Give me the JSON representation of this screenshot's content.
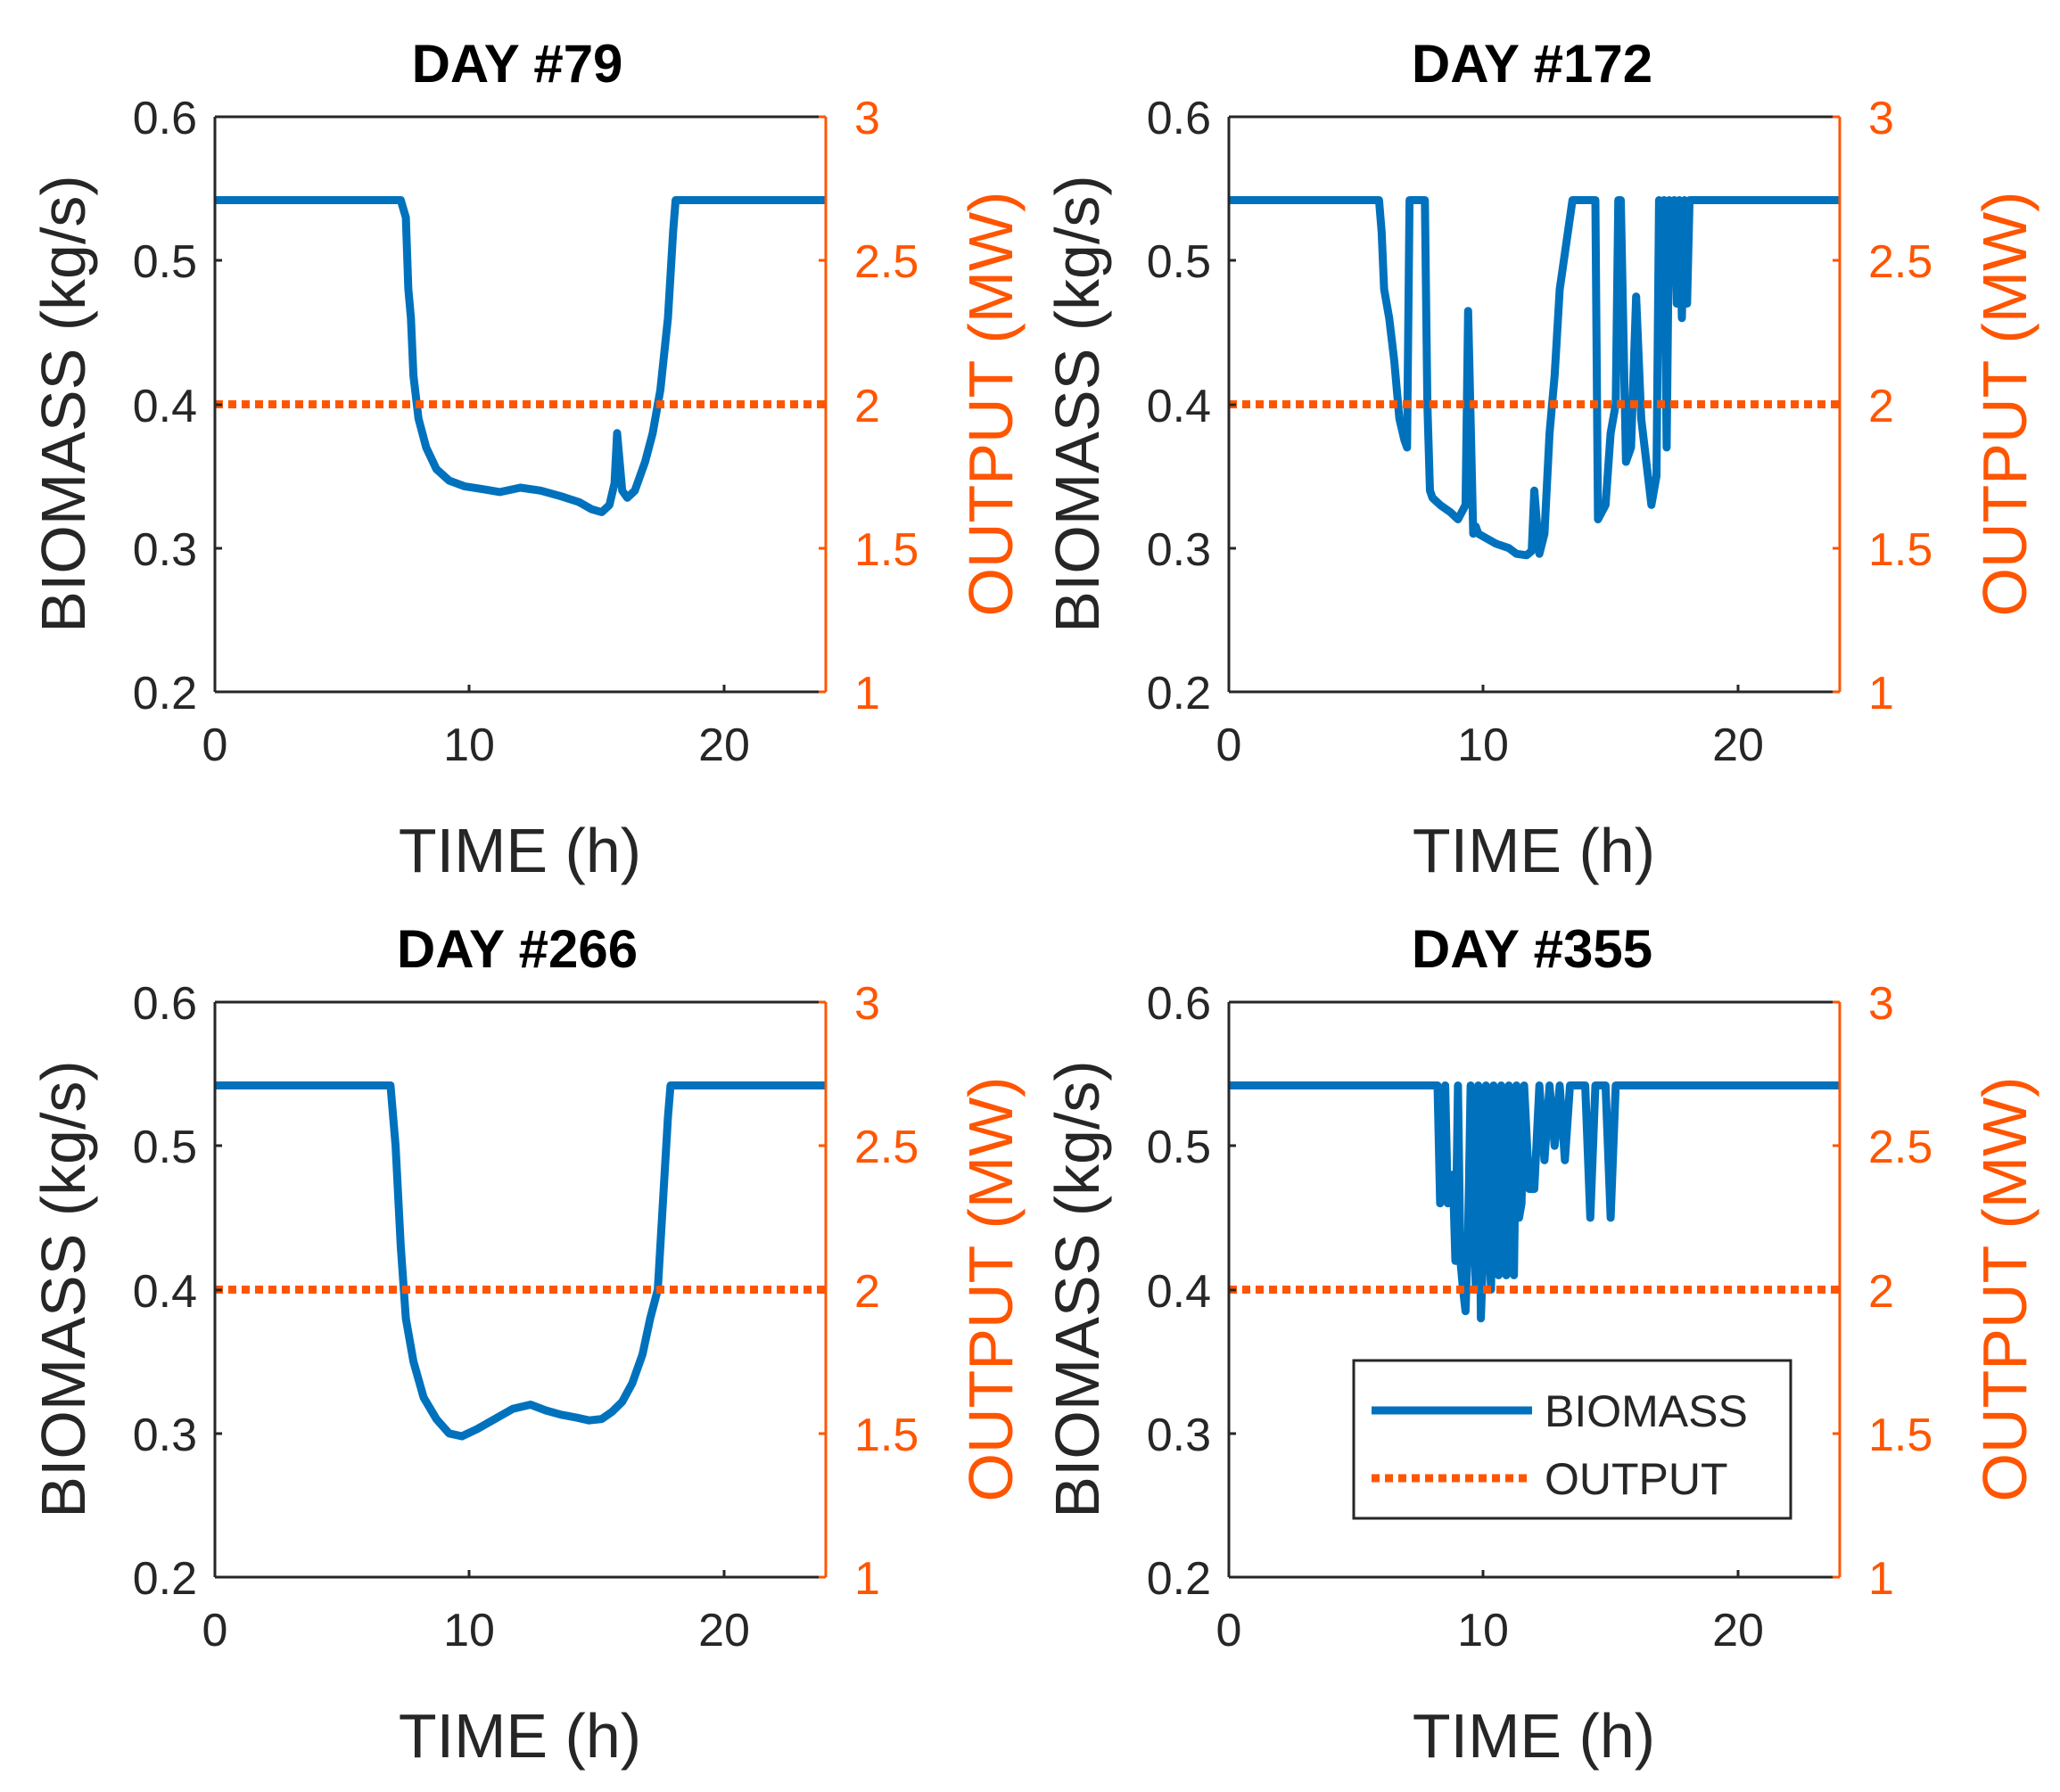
{
  "figure": {
    "colors": {
      "biomass": "#0072BD",
      "output": "#FF5500",
      "axis": "#262626",
      "frame": "#000000"
    },
    "legend": {
      "entries": [
        "BIOMASS",
        "OUTPUT"
      ],
      "placement": "lower-right of DAY #355 panel"
    }
  },
  "chart_data": [
    {
      "type": "line",
      "title": "DAY #79",
      "xlabel": "TIME (h)",
      "ylabel": "BIOMASS (kg/s)",
      "ylabel_right": "OUTPUT (MW)",
      "xlim": [
        0,
        24
      ],
      "ylim": [
        0.2,
        0.6
      ],
      "ylim_right": [
        1,
        3
      ],
      "xticks": [
        "0",
        "10",
        "20"
      ],
      "yticks": [
        "0.2",
        "0.3",
        "0.4",
        "0.5",
        "0.6"
      ],
      "yticks_right": [
        "1",
        "1.5",
        "2",
        "2.5",
        "3"
      ],
      "series": [
        {
          "name": "BIOMASS",
          "axis": "left",
          "style": "solid",
          "x": [
            0,
            7.3,
            7.5,
            7.6,
            7.7,
            7.8,
            8.0,
            8.3,
            8.7,
            9.2,
            9.8,
            10.5,
            11.2,
            12.0,
            12.8,
            13.6,
            14.3,
            14.8,
            15.2,
            15.5,
            15.7,
            15.8,
            16.0,
            16.2,
            16.5,
            16.9,
            17.2,
            17.5,
            17.8,
            18.0,
            18.1,
            24
          ],
          "values": [
            0.542,
            0.542,
            0.53,
            0.48,
            0.46,
            0.42,
            0.39,
            0.37,
            0.355,
            0.347,
            0.343,
            0.341,
            0.339,
            0.342,
            0.34,
            0.336,
            0.332,
            0.327,
            0.325,
            0.33,
            0.345,
            0.38,
            0.34,
            0.335,
            0.34,
            0.36,
            0.38,
            0.41,
            0.46,
            0.52,
            0.542,
            0.542
          ]
        },
        {
          "name": "OUTPUT",
          "axis": "right",
          "style": "dotted",
          "x": [
            0,
            24
          ],
          "values": [
            2,
            2
          ]
        }
      ]
    },
    {
      "type": "line",
      "title": "DAY #172",
      "xlabel": "TIME (h)",
      "ylabel": "BIOMASS (kg/s)",
      "ylabel_right": "OUTPUT (MW)",
      "xlim": [
        0,
        24
      ],
      "ylim": [
        0.2,
        0.6
      ],
      "ylim_right": [
        1,
        3
      ],
      "xticks": [
        "0",
        "10",
        "20"
      ],
      "yticks": [
        "0.2",
        "0.3",
        "0.4",
        "0.5",
        "0.6"
      ],
      "yticks_right": [
        "1",
        "1.5",
        "2",
        "2.5",
        "3"
      ],
      "series": [
        {
          "name": "BIOMASS",
          "axis": "left",
          "style": "solid",
          "x": [
            0,
            5.9,
            6.0,
            6.1,
            6.3,
            6.5,
            6.7,
            6.9,
            7.0,
            7.1,
            7.2,
            7.3,
            7.5,
            7.7,
            7.8,
            7.9,
            8.0,
            8.3,
            8.7,
            9.0,
            9.3,
            9.4,
            9.6,
            9.7,
            9.8,
            10.0,
            10.5,
            11.0,
            11.3,
            11.7,
            11.9,
            12.0,
            12.2,
            12.4,
            12.6,
            12.8,
            13.0,
            13.5,
            14.0,
            14.3,
            14.4,
            14.5,
            14.8,
            15.0,
            15.2,
            15.3,
            15.4,
            15.6,
            15.8,
            16.0,
            16.2,
            16.4,
            16.6,
            16.8,
            16.9,
            17.0,
            17.1,
            17.2,
            17.3,
            17.4,
            17.5,
            17.6,
            17.7,
            17.8,
            17.9,
            18.0,
            18.1,
            18.2,
            24
          ],
          "values": [
            0.542,
            0.542,
            0.52,
            0.48,
            0.46,
            0.43,
            0.39,
            0.375,
            0.37,
            0.542,
            0.542,
            0.542,
            0.542,
            0.542,
            0.4,
            0.34,
            0.335,
            0.33,
            0.325,
            0.32,
            0.33,
            0.465,
            0.31,
            0.315,
            0.31,
            0.308,
            0.303,
            0.3,
            0.296,
            0.295,
            0.298,
            0.34,
            0.296,
            0.31,
            0.38,
            0.42,
            0.48,
            0.542,
            0.542,
            0.542,
            0.542,
            0.32,
            0.33,
            0.38,
            0.4,
            0.542,
            0.542,
            0.36,
            0.37,
            0.475,
            0.39,
            0.36,
            0.33,
            0.35,
            0.542,
            0.48,
            0.542,
            0.37,
            0.542,
            0.49,
            0.542,
            0.47,
            0.542,
            0.46,
            0.542,
            0.47,
            0.542,
            0.542,
            0.542
          ]
        },
        {
          "name": "OUTPUT",
          "axis": "right",
          "style": "dotted",
          "x": [
            0,
            24
          ],
          "values": [
            2,
            2
          ]
        }
      ]
    },
    {
      "type": "line",
      "title": "DAY #266",
      "xlabel": "TIME (h)",
      "ylabel": "BIOMASS (kg/s)",
      "ylabel_right": "OUTPUT (MW)",
      "xlim": [
        0,
        24
      ],
      "ylim": [
        0.2,
        0.6
      ],
      "ylim_right": [
        1,
        3
      ],
      "xticks": [
        "0",
        "10",
        "20"
      ],
      "yticks": [
        "0.2",
        "0.3",
        "0.4",
        "0.5",
        "0.6"
      ],
      "yticks_right": [
        "1",
        "1.5",
        "2",
        "2.5",
        "3"
      ],
      "series": [
        {
          "name": "BIOMASS",
          "axis": "left",
          "style": "solid",
          "x": [
            0,
            6.9,
            7.1,
            7.3,
            7.5,
            7.8,
            8.2,
            8.7,
            9.2,
            9.7,
            10.3,
            11.0,
            11.7,
            12.4,
            13.0,
            13.6,
            14.2,
            14.7,
            15.2,
            15.6,
            16.0,
            16.4,
            16.8,
            17.1,
            17.4,
            17.6,
            17.8,
            17.9,
            24
          ],
          "values": [
            0.542,
            0.542,
            0.5,
            0.43,
            0.38,
            0.35,
            0.325,
            0.31,
            0.3,
            0.298,
            0.303,
            0.31,
            0.317,
            0.32,
            0.316,
            0.313,
            0.311,
            0.309,
            0.31,
            0.315,
            0.322,
            0.335,
            0.355,
            0.38,
            0.4,
            0.46,
            0.52,
            0.542,
            0.542
          ]
        },
        {
          "name": "OUTPUT",
          "axis": "right",
          "style": "dotted",
          "x": [
            0,
            24
          ],
          "values": [
            2,
            2
          ]
        }
      ]
    },
    {
      "type": "line",
      "title": "DAY #355",
      "xlabel": "TIME (h)",
      "ylabel": "BIOMASS (kg/s)",
      "ylabel_right": "OUTPUT (MW)",
      "xlim": [
        0,
        24
      ],
      "ylim": [
        0.2,
        0.6
      ],
      "ylim_right": [
        1,
        3
      ],
      "xticks": [
        "0",
        "10",
        "20"
      ],
      "yticks": [
        "0.2",
        "0.3",
        "0.4",
        "0.5",
        "0.6"
      ],
      "yticks_right": [
        "1",
        "1.5",
        "2",
        "2.5",
        "3"
      ],
      "series": [
        {
          "name": "BIOMASS",
          "axis": "left",
          "style": "solid",
          "x": [
            0,
            8.2,
            8.3,
            8.5,
            8.6,
            8.8,
            8.9,
            9.0,
            9.1,
            9.2,
            9.3,
            9.4,
            9.5,
            9.6,
            9.7,
            9.8,
            9.9,
            10.0,
            10.1,
            10.2,
            10.3,
            10.4,
            10.5,
            10.6,
            10.7,
            10.8,
            10.9,
            11.0,
            11.1,
            11.2,
            11.3,
            11.4,
            11.5,
            11.6,
            11.8,
            12.0,
            12.2,
            12.4,
            12.6,
            12.8,
            13.0,
            13.2,
            13.4,
            13.6,
            13.8,
            14.0,
            14.2,
            14.4,
            14.6,
            14.8,
            15.0,
            15.2,
            15.4,
            15.5,
            24
          ],
          "values": [
            0.542,
            0.542,
            0.46,
            0.542,
            0.46,
            0.48,
            0.42,
            0.542,
            0.42,
            0.4,
            0.385,
            0.44,
            0.542,
            0.46,
            0.4,
            0.542,
            0.38,
            0.43,
            0.542,
            0.45,
            0.4,
            0.542,
            0.43,
            0.41,
            0.542,
            0.42,
            0.41,
            0.542,
            0.44,
            0.41,
            0.542,
            0.45,
            0.46,
            0.542,
            0.47,
            0.47,
            0.542,
            0.49,
            0.542,
            0.5,
            0.542,
            0.49,
            0.542,
            0.542,
            0.542,
            0.542,
            0.45,
            0.542,
            0.542,
            0.542,
            0.45,
            0.542,
            0.542,
            0.542,
            0.542
          ]
        },
        {
          "name": "OUTPUT",
          "axis": "right",
          "style": "dotted",
          "x": [
            0,
            24
          ],
          "values": [
            2,
            2
          ]
        }
      ]
    }
  ]
}
